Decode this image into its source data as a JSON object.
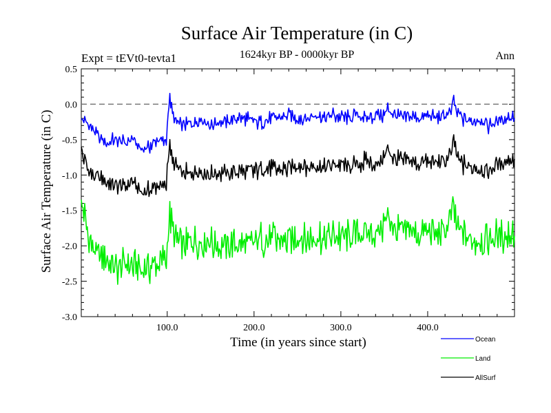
{
  "chart_data": {
    "type": "line",
    "title": "Surface Air Temperature (in C)",
    "subtitle": "1624kyr BP - 0000kyr BP",
    "experiment": "Expt = tEVt0-tevta1",
    "season": "Ann",
    "xlabel": "Time (in years since start)",
    "ylabel": "Surface Air Temperature (in C)",
    "xlim": [
      1,
      500
    ],
    "ylim": [
      -3.0,
      0.5
    ],
    "x_ticks": [
      100,
      200,
      300,
      400
    ],
    "x_tick_labels": [
      "100.0",
      "200.0",
      "300.0",
      "400.0"
    ],
    "y_ticks": [
      0.5,
      0.0,
      -0.5,
      -1.0,
      -1.5,
      -2.0,
      -2.5,
      -3.0
    ],
    "y_tick_labels": [
      "0.5",
      "0.0",
      "-0.5",
      "-1.0",
      "-1.5",
      "-2.0",
      "-2.5",
      "-3.0"
    ],
    "reference_line": {
      "y": 0.0,
      "style": "dashed"
    },
    "series_x": [
      1,
      10,
      20,
      30,
      40,
      50,
      60,
      70,
      80,
      90,
      99,
      101,
      103,
      106,
      110,
      120,
      130,
      140,
      150,
      160,
      170,
      180,
      190,
      200,
      210,
      220,
      230,
      240,
      250,
      260,
      270,
      280,
      290,
      300,
      310,
      320,
      330,
      340,
      350,
      355,
      360,
      370,
      380,
      390,
      400,
      410,
      420,
      428,
      430,
      433,
      440,
      450,
      460,
      470,
      480,
      490,
      500
    ],
    "series": [
      {
        "name": "Ocean",
        "color": "#0000ff",
        "values": [
          -0.2,
          -0.3,
          -0.45,
          -0.55,
          -0.5,
          -0.55,
          -0.5,
          -0.65,
          -0.6,
          -0.5,
          -0.55,
          -0.05,
          0.05,
          -0.15,
          -0.25,
          -0.3,
          -0.25,
          -0.2,
          -0.3,
          -0.25,
          -0.25,
          -0.2,
          -0.2,
          -0.25,
          -0.25,
          -0.2,
          -0.2,
          -0.15,
          -0.2,
          -0.2,
          -0.15,
          -0.2,
          -0.15,
          -0.2,
          -0.2,
          -0.15,
          -0.2,
          -0.15,
          -0.15,
          -0.05,
          -0.15,
          -0.2,
          -0.15,
          -0.2,
          -0.15,
          -0.2,
          -0.15,
          -0.1,
          0.08,
          -0.1,
          -0.2,
          -0.25,
          -0.2,
          -0.3,
          -0.25,
          -0.2,
          -0.15
        ]
      },
      {
        "name": "Land",
        "color": "#00ee00",
        "values": [
          -1.4,
          -1.9,
          -2.1,
          -2.2,
          -2.3,
          -2.25,
          -2.3,
          -2.35,
          -2.3,
          -2.25,
          -2.2,
          -1.7,
          -1.6,
          -1.75,
          -1.9,
          -2.0,
          -1.95,
          -2.0,
          -1.95,
          -2.0,
          -2.0,
          -1.95,
          -2.0,
          -1.95,
          -1.9,
          -1.9,
          -1.95,
          -1.9,
          -1.85,
          -1.9,
          -1.85,
          -1.9,
          -1.85,
          -1.85,
          -1.9,
          -1.85,
          -1.8,
          -1.85,
          -1.7,
          -1.55,
          -1.75,
          -1.8,
          -1.8,
          -1.85,
          -1.8,
          -1.85,
          -1.8,
          -1.6,
          -1.4,
          -1.7,
          -1.85,
          -1.9,
          -1.95,
          -1.9,
          -1.85,
          -1.85,
          -1.75
        ]
      },
      {
        "name": "AllSurf",
        "color": "#000000",
        "values": [
          -0.65,
          -0.95,
          -1.05,
          -1.1,
          -1.15,
          -1.15,
          -1.1,
          -1.25,
          -1.2,
          -1.15,
          -1.15,
          -0.7,
          -0.6,
          -0.8,
          -0.9,
          -1.0,
          -0.95,
          -0.95,
          -1.0,
          -0.95,
          -1.0,
          -0.95,
          -0.95,
          -0.95,
          -0.9,
          -0.9,
          -0.95,
          -0.9,
          -0.85,
          -0.9,
          -0.85,
          -0.9,
          -0.85,
          -0.85,
          -0.9,
          -0.85,
          -0.8,
          -0.85,
          -0.75,
          -0.6,
          -0.75,
          -0.8,
          -0.8,
          -0.85,
          -0.8,
          -0.85,
          -0.8,
          -0.7,
          -0.5,
          -0.7,
          -0.85,
          -0.9,
          -0.9,
          -0.95,
          -0.85,
          -0.8,
          -0.75
        ]
      }
    ],
    "legend": [
      {
        "label": "Ocean",
        "color": "#0000ff"
      },
      {
        "label": "Land",
        "color": "#00ee00"
      },
      {
        "label": "AllSurf",
        "color": "#000000"
      }
    ]
  }
}
